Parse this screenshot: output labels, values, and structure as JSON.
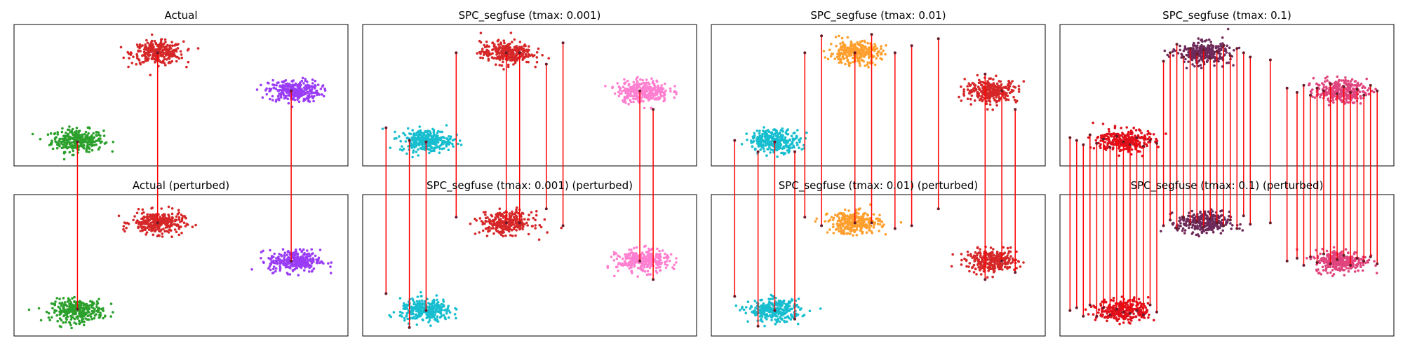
{
  "chart_data": {
    "type": "scatter",
    "layout": {
      "rows": 2,
      "cols": 4
    },
    "grid": false,
    "axes_ticks": false,
    "link_color": "#ff0000",
    "panels": [
      {
        "title": "Actual",
        "clusters": [
          {
            "color": "#2ca02c",
            "center": [
              0.19,
              0.18
            ],
            "spread": [
              0.07,
              0.028
            ]
          },
          {
            "color": "#d62728",
            "center": [
              0.43,
              0.8
            ],
            "spread": [
              0.07,
              0.028
            ]
          },
          {
            "color": "#9a3cf5",
            "center": [
              0.84,
              0.53
            ],
            "spread": [
              0.07,
              0.028
            ]
          }
        ],
        "links": [
          [
            0.19,
            0.17,
            0.19
          ],
          [
            0.43,
            0.8,
            0.8
          ],
          [
            0.83,
            0.53,
            0.53
          ]
        ]
      },
      {
        "title": "Actual (perturbed)",
        "clusters": [
          {
            "color": "#2ca02c",
            "center": [
              0.19,
              0.18
            ],
            "spread": [
              0.07,
              0.028
            ]
          },
          {
            "color": "#d62728",
            "center": [
              0.43,
              0.8
            ],
            "spread": [
              0.07,
              0.028
            ]
          },
          {
            "color": "#9a3cf5",
            "center": [
              0.84,
              0.53
            ],
            "spread": [
              0.07,
              0.028
            ]
          }
        ]
      },
      {
        "title": "SPC_segfuse (tmax: 0.001)",
        "clusters": [
          {
            "color": "#17becf",
            "center": [
              0.19,
              0.18
            ],
            "spread": [
              0.07,
              0.028
            ]
          },
          {
            "color": "#d62728",
            "center": [
              0.43,
              0.8
            ],
            "spread": [
              0.07,
              0.028
            ]
          },
          {
            "color": "#ff7fd0",
            "center": [
              0.84,
              0.53
            ],
            "spread": [
              0.07,
              0.028
            ]
          }
        ],
        "links": [
          [
            0.07,
            0.27,
            0.3
          ],
          [
            0.14,
            0.18,
            0.06
          ],
          [
            0.19,
            0.17,
            0.18
          ],
          [
            0.28,
            0.8,
            0.84
          ],
          [
            0.43,
            0.8,
            0.8
          ],
          [
            0.47,
            0.8,
            0.8
          ],
          [
            0.55,
            0.72,
            0.9
          ],
          [
            0.6,
            0.87,
            0.78
          ],
          [
            0.83,
            0.53,
            0.53
          ],
          [
            0.87,
            0.4,
            0.4
          ]
        ]
      },
      {
        "title": "SPC_segfuse (tmax: 0.001) (perturbed)",
        "clusters": [
          {
            "color": "#17becf",
            "center": [
              0.19,
              0.18
            ],
            "spread": [
              0.07,
              0.028
            ]
          },
          {
            "color": "#d62728",
            "center": [
              0.43,
              0.8
            ],
            "spread": [
              0.07,
              0.028
            ]
          },
          {
            "color": "#ff7fd0",
            "center": [
              0.84,
              0.53
            ],
            "spread": [
              0.07,
              0.028
            ]
          }
        ]
      },
      {
        "title": "SPC_segfuse (tmax: 0.01)",
        "clusters": [
          {
            "color": "#17becf",
            "center": [
              0.19,
              0.18
            ],
            "spread": [
              0.07,
              0.028
            ]
          },
          {
            "color": "#ff9f2e",
            "center": [
              0.43,
              0.8
            ],
            "spread": [
              0.07,
              0.028
            ]
          },
          {
            "color": "#d62728",
            "center": [
              0.84,
              0.53
            ],
            "spread": [
              0.07,
              0.028
            ]
          }
        ],
        "links": [
          [
            0.07,
            0.18,
            0.28
          ],
          [
            0.14,
            0.1,
            0.07
          ],
          [
            0.19,
            0.17,
            0.18
          ],
          [
            0.25,
            0.1,
            0.12
          ],
          [
            0.28,
            0.8,
            0.84
          ],
          [
            0.33,
            0.92,
            0.78
          ],
          [
            0.43,
            0.8,
            0.8
          ],
          [
            0.48,
            0.93,
            0.8
          ],
          [
            0.55,
            0.8,
            0.76
          ],
          [
            0.6,
            0.85,
            0.78
          ],
          [
            0.68,
            0.9,
            0.9
          ],
          [
            0.82,
            0.65,
            0.4
          ],
          [
            0.87,
            0.53,
            0.53
          ],
          [
            0.91,
            0.4,
            0.45
          ]
        ]
      },
      {
        "title": "SPC_segfuse (tmax: 0.01) (perturbed)",
        "clusters": [
          {
            "color": "#17becf",
            "center": [
              0.19,
              0.18
            ],
            "spread": [
              0.07,
              0.028
            ]
          },
          {
            "color": "#ff9f2e",
            "center": [
              0.43,
              0.8
            ],
            "spread": [
              0.07,
              0.028
            ]
          },
          {
            "color": "#d62728",
            "center": [
              0.84,
              0.53
            ],
            "spread": [
              0.07,
              0.028
            ]
          }
        ]
      },
      {
        "title": "SPC_segfuse (tmax: 0.1)",
        "clusters": [
          {
            "color": "#e0101a",
            "center": [
              0.19,
              0.18
            ],
            "spread": [
              0.07,
              0.028
            ]
          },
          {
            "color": "#6d2a5a",
            "center": [
              0.43,
              0.8
            ],
            "spread": [
              0.07,
              0.028
            ]
          },
          {
            "color": "#e0457e",
            "center": [
              0.84,
              0.53
            ],
            "spread": [
              0.07,
              0.028
            ]
          }
        ],
        "links": [
          [
            0.03,
            0.2,
            0.18
          ],
          [
            0.05,
            0.18,
            0.2
          ],
          [
            0.07,
            0.15,
            0.14
          ],
          [
            0.09,
            0.22,
            0.22
          ],
          [
            0.11,
            0.16,
            0.14
          ],
          [
            0.13,
            0.19,
            0.2
          ],
          [
            0.15,
            0.13,
            0.15
          ],
          [
            0.17,
            0.21,
            0.19
          ],
          [
            0.19,
            0.17,
            0.17
          ],
          [
            0.21,
            0.15,
            0.16
          ],
          [
            0.23,
            0.2,
            0.18
          ],
          [
            0.25,
            0.14,
            0.15
          ],
          [
            0.27,
            0.18,
            0.22
          ],
          [
            0.29,
            0.16,
            0.17
          ],
          [
            0.31,
            0.74,
            0.78
          ],
          [
            0.33,
            0.8,
            0.82
          ],
          [
            0.35,
            0.86,
            0.76
          ],
          [
            0.37,
            0.77,
            0.84
          ],
          [
            0.39,
            0.83,
            0.79
          ],
          [
            0.41,
            0.79,
            0.81
          ],
          [
            0.43,
            0.82,
            0.77
          ],
          [
            0.45,
            0.76,
            0.83
          ],
          [
            0.47,
            0.81,
            0.8
          ],
          [
            0.49,
            0.85,
            0.78
          ],
          [
            0.51,
            0.78,
            0.82
          ],
          [
            0.53,
            0.83,
            0.76
          ],
          [
            0.55,
            0.8,
            0.85
          ],
          [
            0.57,
            0.77,
            0.79
          ],
          [
            0.63,
            0.75,
            0.8
          ],
          [
            0.68,
            0.55,
            0.53
          ],
          [
            0.71,
            0.52,
            0.55
          ],
          [
            0.73,
            0.57,
            0.5
          ],
          [
            0.75,
            0.5,
            0.56
          ],
          [
            0.77,
            0.55,
            0.52
          ],
          [
            0.79,
            0.53,
            0.58
          ],
          [
            0.81,
            0.58,
            0.51
          ],
          [
            0.83,
            0.51,
            0.54
          ],
          [
            0.85,
            0.56,
            0.57
          ],
          [
            0.87,
            0.52,
            0.5
          ],
          [
            0.89,
            0.54,
            0.55
          ],
          [
            0.91,
            0.5,
            0.53
          ],
          [
            0.93,
            0.57,
            0.56
          ],
          [
            0.95,
            0.53,
            0.51
          ]
        ]
      },
      {
        "title": "SPC_segfuse (tmax: 0.1) (perturbed)",
        "clusters": [
          {
            "color": "#e0101a",
            "center": [
              0.19,
              0.18
            ],
            "spread": [
              0.07,
              0.028
            ]
          },
          {
            "color": "#6d2a5a",
            "center": [
              0.43,
              0.8
            ],
            "spread": [
              0.07,
              0.028
            ]
          },
          {
            "color": "#e0457e",
            "center": [
              0.84,
              0.53
            ],
            "spread": [
              0.07,
              0.028
            ]
          }
        ]
      }
    ]
  }
}
